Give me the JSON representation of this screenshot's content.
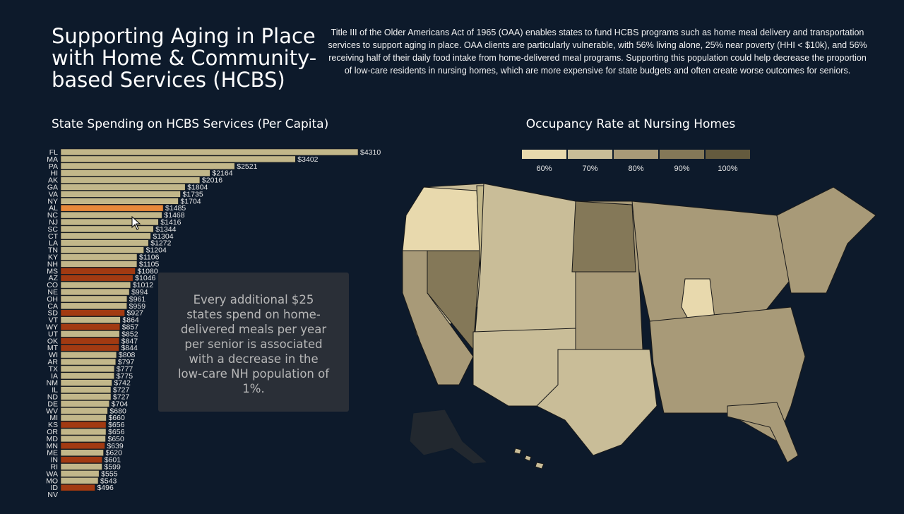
{
  "page": {
    "title": "Supporting Aging in Place with Home & Community-based Services (HCBS)",
    "intro": "Title III of the Older Americans Act of 1965 (OAA) enables states to fund HCBS programs such as home meal delivery and transportation services to support aging in place. OAA clients are particularly vulnerable, with 56% living alone, 25% near poverty (HHI < $10k), and 56% receiving half of their daily food intake from home-delivered meal programs. Supporting this population could help decrease the proportion of low-care residents in nursing homes, which are more expensive for state budgets and often create worse outcomes for seniors."
  },
  "callout": {
    "text": "Every additional $25 states spend on home-delivered meals per year per senior is associated with a decrease in the low-care NH population of 1%."
  },
  "colors": {
    "background": "#0d1a2b",
    "bar_default": "#c2b78a",
    "bar_highlight": "#e8883a",
    "bar_red": "#a23a12",
    "callout_bg": "#2a2f37"
  },
  "chart_data": [
    {
      "type": "bar",
      "orientation": "horizontal",
      "title": "State Spending on HCBS Services (Per Capita)",
      "categories": [
        "FL",
        "MA",
        "PA",
        "HI",
        "AK",
        "GA",
        "VA",
        "NY",
        "AL",
        "NC",
        "NJ",
        "SC",
        "CT",
        "LA",
        "TN",
        "KY",
        "NH",
        "MS",
        "AZ",
        "CO",
        "NE",
        "OH",
        "CA",
        "SD",
        "VT",
        "WY",
        "UT",
        "OK",
        "MT",
        "WI",
        "AR",
        "TX",
        "IA",
        "NM",
        "IL",
        "ND",
        "DE",
        "WV",
        "MI",
        "KS",
        "OR",
        "MD",
        "MN",
        "ME",
        "IN",
        "RI",
        "WA",
        "MO",
        "ID",
        "NV"
      ],
      "values": [
        4310,
        3402,
        2521,
        2164,
        2016,
        1804,
        1735,
        1704,
        1485,
        1468,
        1416,
        1344,
        1304,
        1272,
        1204,
        1106,
        1105,
        1080,
        1046,
        1012,
        994,
        961,
        959,
        927,
        864,
        857,
        852,
        847,
        844,
        808,
        797,
        777,
        775,
        742,
        727,
        727,
        704,
        680,
        660,
        656,
        656,
        650,
        639,
        620,
        601,
        599,
        555,
        543,
        496,
        0
      ],
      "value_labels": [
        "$4310",
        "$3402",
        "$2521",
        "$2164",
        "$2016",
        "$1804",
        "$1735",
        "$1704",
        "$1485",
        "$1468",
        "$1416",
        "$1344",
        "$1304",
        "$1272",
        "$1204",
        "$1106",
        "$1105",
        "$1080",
        "$1046",
        "$1012",
        "$994",
        "$961",
        "$959",
        "$927",
        "$864",
        "$857",
        "$852",
        "$847",
        "$844",
        "$808",
        "$797",
        "$777",
        "$775",
        "$742",
        "$727",
        "$727",
        "$704",
        "$680",
        "$660",
        "$656",
        "$656",
        "$650",
        "$639",
        "$620",
        "$601",
        "$599",
        "$555",
        "$543",
        "$496",
        ""
      ],
      "highlight": "AL",
      "red_states": [
        "MS",
        "AZ",
        "SD",
        "WY",
        "OK",
        "MT",
        "KS",
        "MN",
        "IN",
        "ID"
      ],
      "xlim": [
        0,
        4310
      ]
    },
    {
      "type": "choropleth",
      "title": "Occupancy Rate at Nursing Homes",
      "legend": {
        "labels": [
          "60%",
          "70%",
          "80%",
          "90%",
          "100%"
        ],
        "colors": [
          "#e8d9ad",
          "#c9bd98",
          "#a89a78",
          "#847858",
          "#645a3e"
        ]
      }
    }
  ]
}
